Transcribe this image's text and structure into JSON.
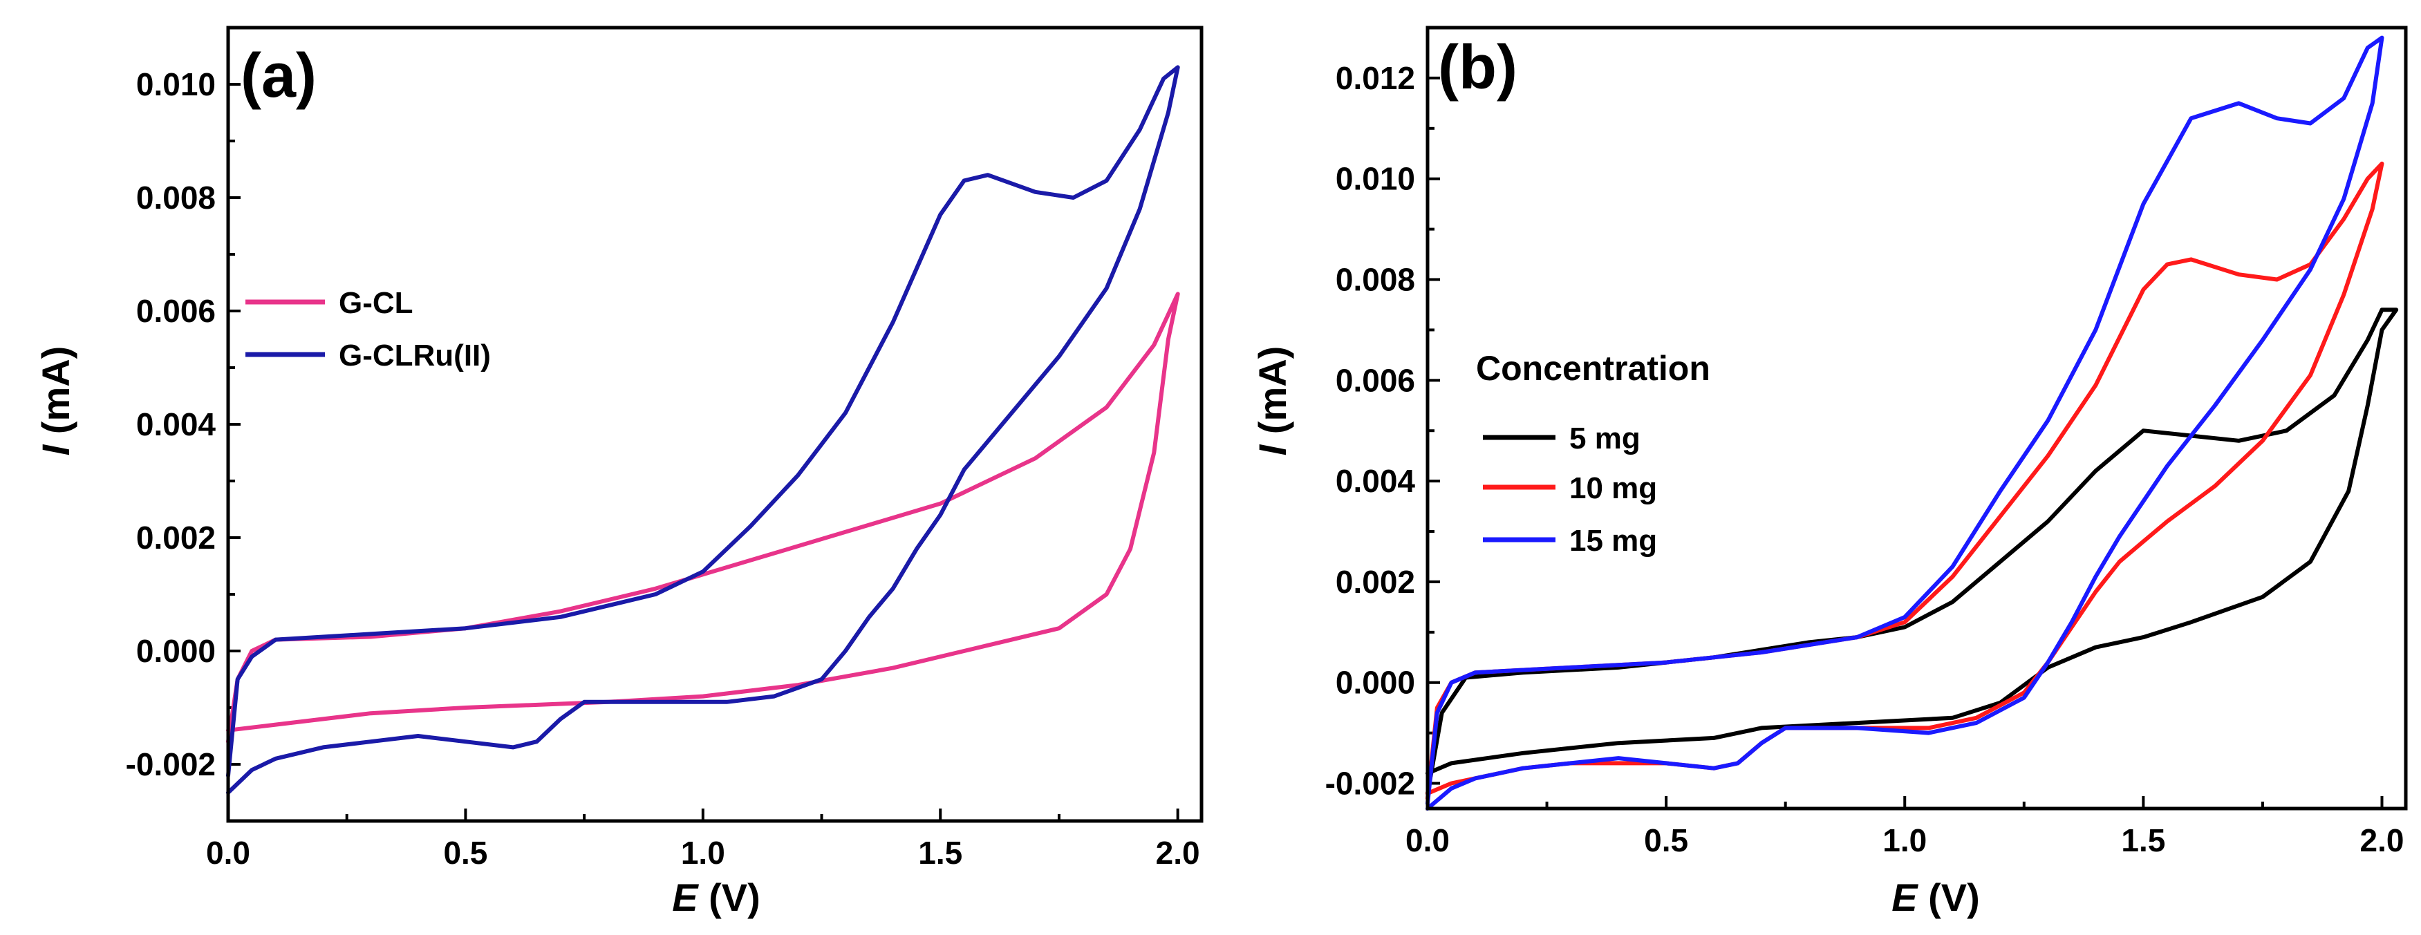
{
  "chart_data": [
    {
      "panel_label": "(a)",
      "type": "line",
      "xlabel_symbol": "E",
      "xlabel_unit": " (V)",
      "ylabel_symbol": "I",
      "ylabel_unit": " (mA)",
      "xlim": [
        0,
        2.05
      ],
      "ylim": [
        -0.003,
        0.011
      ],
      "xticks": [
        0,
        0.5,
        1.0,
        1.5,
        2.0
      ],
      "xtick_labels": [
        "0.0",
        "0.5",
        "1.0",
        "1.5",
        "2.0"
      ],
      "yticks": [
        -0.002,
        0,
        0.002,
        0.004,
        0.006,
        0.008,
        0.01
      ],
      "ytick_labels": [
        "-0.002",
        "0.000",
        "0.002",
        "0.004",
        "0.006",
        "0.008",
        "0.010"
      ],
      "legend_position": "center-left",
      "series": [
        {
          "name": "G-CL",
          "color": "#e8348a",
          "points": [
            [
              0,
              -0.0016
            ],
            [
              0.02,
              -0.0005
            ],
            [
              0.05,
              0
            ],
            [
              0.1,
              0.0002
            ],
            [
              0.3,
              0.00025
            ],
            [
              0.5,
              0.0004
            ],
            [
              0.7,
              0.0007
            ],
            [
              0.9,
              0.0011
            ],
            [
              1.1,
              0.0016
            ],
            [
              1.3,
              0.0021
            ],
            [
              1.5,
              0.0026
            ],
            [
              1.7,
              0.0034
            ],
            [
              1.85,
              0.0043
            ],
            [
              1.95,
              0.0054
            ],
            [
              2.0,
              0.0063
            ],
            [
              1.98,
              0.0055
            ],
            [
              1.95,
              0.0035
            ],
            [
              1.9,
              0.0018
            ],
            [
              1.85,
              0.001
            ],
            [
              1.75,
              0.0004
            ],
            [
              1.6,
              0.0001
            ],
            [
              1.4,
              -0.0003
            ],
            [
              1.2,
              -0.0006
            ],
            [
              1.0,
              -0.0008
            ],
            [
              0.8,
              -0.0009
            ],
            [
              0.5,
              -0.001
            ],
            [
              0.3,
              -0.0011
            ],
            [
              0.1,
              -0.0013
            ],
            [
              0,
              -0.0014
            ]
          ]
        },
        {
          "name": "G-CLRu(II)",
          "color": "#1a1aa8",
          "points": [
            [
              0,
              -0.0022
            ],
            [
              0.02,
              -0.0005
            ],
            [
              0.05,
              -0.0001
            ],
            [
              0.1,
              0.0002
            ],
            [
              0.3,
              0.0003
            ],
            [
              0.5,
              0.0004
            ],
            [
              0.7,
              0.0006
            ],
            [
              0.9,
              0.001
            ],
            [
              1.0,
              0.0014
            ],
            [
              1.1,
              0.0022
            ],
            [
              1.2,
              0.0031
            ],
            [
              1.3,
              0.0042
            ],
            [
              1.4,
              0.0058
            ],
            [
              1.5,
              0.0077
            ],
            [
              1.55,
              0.0083
            ],
            [
              1.6,
              0.0084
            ],
            [
              1.7,
              0.0081
            ],
            [
              1.78,
              0.008
            ],
            [
              1.85,
              0.0083
            ],
            [
              1.92,
              0.0092
            ],
            [
              1.97,
              0.0101
            ],
            [
              2.0,
              0.0103
            ],
            [
              1.98,
              0.0095
            ],
            [
              1.92,
              0.0078
            ],
            [
              1.85,
              0.0064
            ],
            [
              1.75,
              0.0052
            ],
            [
              1.65,
              0.0042
            ],
            [
              1.55,
              0.0032
            ],
            [
              1.5,
              0.0024
            ],
            [
              1.45,
              0.0018
            ],
            [
              1.4,
              0.0011
            ],
            [
              1.35,
              0.0006
            ],
            [
              1.3,
              0
            ],
            [
              1.25,
              -0.0005
            ],
            [
              1.15,
              -0.0008
            ],
            [
              1.05,
              -0.0009
            ],
            [
              0.9,
              -0.0009
            ],
            [
              0.75,
              -0.0009
            ],
            [
              0.7,
              -0.0012
            ],
            [
              0.65,
              -0.0016
            ],
            [
              0.6,
              -0.0017
            ],
            [
              0.5,
              -0.0016
            ],
            [
              0.4,
              -0.0015
            ],
            [
              0.3,
              -0.0016
            ],
            [
              0.2,
              -0.0017
            ],
            [
              0.1,
              -0.0019
            ],
            [
              0.05,
              -0.0021
            ],
            [
              0,
              -0.0025
            ]
          ]
        }
      ]
    },
    {
      "panel_label": "(b)",
      "type": "line",
      "xlabel_symbol": "E",
      "xlabel_unit": " (V)",
      "ylabel_symbol": "I",
      "ylabel_unit": " (mA)",
      "xlim": [
        0,
        2.05
      ],
      "ylim": [
        -0.0025,
        0.013
      ],
      "xticks": [
        0,
        0.5,
        1.0,
        1.5,
        2.0
      ],
      "xtick_labels": [
        "0.0",
        "0.5",
        "1.0",
        "1.5",
        "2.0"
      ],
      "yticks": [
        -0.002,
        0,
        0.002,
        0.004,
        0.006,
        0.008,
        0.01,
        0.012
      ],
      "ytick_labels": [
        "-0.002",
        "0.000",
        "0.002",
        "0.004",
        "0.006",
        "0.008",
        "0.010",
        "0.012"
      ],
      "legend_title": "Concentration",
      "legend_position": "center-left",
      "series": [
        {
          "name": "5 mg",
          "color": "#000000",
          "points": [
            [
              0,
              -0.0022
            ],
            [
              0.03,
              -0.0006
            ],
            [
              0.08,
              0.0001
            ],
            [
              0.2,
              0.0002
            ],
            [
              0.4,
              0.0003
            ],
            [
              0.6,
              0.0005
            ],
            [
              0.8,
              0.0008
            ],
            [
              0.9,
              0.0009
            ],
            [
              1.0,
              0.0011
            ],
            [
              1.1,
              0.0016
            ],
            [
              1.2,
              0.0024
            ],
            [
              1.3,
              0.0032
            ],
            [
              1.4,
              0.0042
            ],
            [
              1.5,
              0.005
            ],
            [
              1.6,
              0.0049
            ],
            [
              1.7,
              0.0048
            ],
            [
              1.8,
              0.005
            ],
            [
              1.9,
              0.0057
            ],
            [
              1.97,
              0.0068
            ],
            [
              2.0,
              0.0074
            ],
            [
              2.03,
              0.0074
            ],
            [
              2.0,
              0.007
            ],
            [
              1.97,
              0.0055
            ],
            [
              1.93,
              0.0038
            ],
            [
              1.85,
              0.0024
            ],
            [
              1.75,
              0.0017
            ],
            [
              1.6,
              0.0012
            ],
            [
              1.5,
              0.0009
            ],
            [
              1.4,
              0.0007
            ],
            [
              1.3,
              0.0003
            ],
            [
              1.2,
              -0.0004
            ],
            [
              1.1,
              -0.0007
            ],
            [
              0.9,
              -0.0008
            ],
            [
              0.7,
              -0.0009
            ],
            [
              0.6,
              -0.0011
            ],
            [
              0.4,
              -0.0012
            ],
            [
              0.2,
              -0.0014
            ],
            [
              0.05,
              -0.0016
            ],
            [
              0,
              -0.0018
            ]
          ]
        },
        {
          "name": "10 mg",
          "color": "#ff1a1a",
          "points": [
            [
              0,
              -0.0023
            ],
            [
              0.02,
              -0.0005
            ],
            [
              0.05,
              0
            ],
            [
              0.1,
              0.0002
            ],
            [
              0.3,
              0.0003
            ],
            [
              0.5,
              0.0004
            ],
            [
              0.7,
              0.0006
            ],
            [
              0.9,
              0.0009
            ],
            [
              1.0,
              0.0012
            ],
            [
              1.1,
              0.0021
            ],
            [
              1.2,
              0.0033
            ],
            [
              1.3,
              0.0045
            ],
            [
              1.4,
              0.0059
            ],
            [
              1.5,
              0.0078
            ],
            [
              1.55,
              0.0083
            ],
            [
              1.6,
              0.0084
            ],
            [
              1.7,
              0.0081
            ],
            [
              1.78,
              0.008
            ],
            [
              1.85,
              0.0083
            ],
            [
              1.92,
              0.0092
            ],
            [
              1.97,
              0.01
            ],
            [
              2.0,
              0.0103
            ],
            [
              1.98,
              0.0094
            ],
            [
              1.92,
              0.0077
            ],
            [
              1.85,
              0.0061
            ],
            [
              1.75,
              0.0048
            ],
            [
              1.65,
              0.0039
            ],
            [
              1.55,
              0.0032
            ],
            [
              1.5,
              0.0028
            ],
            [
              1.45,
              0.0024
            ],
            [
              1.4,
              0.0018
            ],
            [
              1.35,
              0.0011
            ],
            [
              1.3,
              0.0004
            ],
            [
              1.25,
              -0.0002
            ],
            [
              1.15,
              -0.0007
            ],
            [
              1.05,
              -0.0009
            ],
            [
              0.9,
              -0.0009
            ],
            [
              0.75,
              -0.0009
            ],
            [
              0.7,
              -0.0012
            ],
            [
              0.65,
              -0.0016
            ],
            [
              0.6,
              -0.0017
            ],
            [
              0.5,
              -0.0016
            ],
            [
              0.4,
              -0.0016
            ],
            [
              0.3,
              -0.0016
            ],
            [
              0.2,
              -0.0017
            ],
            [
              0.1,
              -0.0019
            ],
            [
              0.05,
              -0.002
            ],
            [
              0,
              -0.0022
            ]
          ]
        },
        {
          "name": "15 mg",
          "color": "#1a1aff",
          "points": [
            [
              0,
              -0.0024
            ],
            [
              0.02,
              -0.0006
            ],
            [
              0.05,
              0
            ],
            [
              0.1,
              0.0002
            ],
            [
              0.3,
              0.0003
            ],
            [
              0.5,
              0.0004
            ],
            [
              0.7,
              0.0006
            ],
            [
              0.9,
              0.0009
            ],
            [
              1.0,
              0.0013
            ],
            [
              1.1,
              0.0023
            ],
            [
              1.2,
              0.0038
            ],
            [
              1.3,
              0.0052
            ],
            [
              1.4,
              0.007
            ],
            [
              1.5,
              0.0095
            ],
            [
              1.6,
              0.0112
            ],
            [
              1.7,
              0.0115
            ],
            [
              1.78,
              0.0112
            ],
            [
              1.85,
              0.0111
            ],
            [
              1.92,
              0.0116
            ],
            [
              1.97,
              0.0126
            ],
            [
              2.0,
              0.0128
            ],
            [
              1.98,
              0.0115
            ],
            [
              1.92,
              0.0096
            ],
            [
              1.85,
              0.0082
            ],
            [
              1.75,
              0.0068
            ],
            [
              1.65,
              0.0055
            ],
            [
              1.55,
              0.0043
            ],
            [
              1.45,
              0.0029
            ],
            [
              1.4,
              0.0021
            ],
            [
              1.35,
              0.0012
            ],
            [
              1.3,
              0.0004
            ],
            [
              1.25,
              -0.0003
            ],
            [
              1.15,
              -0.0008
            ],
            [
              1.05,
              -0.001
            ],
            [
              0.9,
              -0.0009
            ],
            [
              0.75,
              -0.0009
            ],
            [
              0.7,
              -0.0012
            ],
            [
              0.65,
              -0.0016
            ],
            [
              0.6,
              -0.0017
            ],
            [
              0.5,
              -0.0016
            ],
            [
              0.4,
              -0.0015
            ],
            [
              0.3,
              -0.0016
            ],
            [
              0.2,
              -0.0017
            ],
            [
              0.1,
              -0.0019
            ],
            [
              0.05,
              -0.0021
            ],
            [
              0,
              -0.0025
            ]
          ]
        }
      ]
    }
  ]
}
